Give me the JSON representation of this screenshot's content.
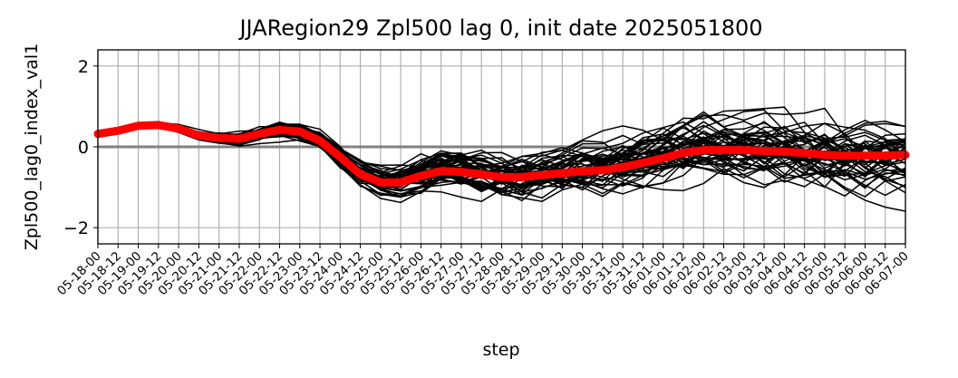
{
  "chart_data": {
    "type": "line",
    "title": "JJARegion29 Zpl500 lag 0, init date 2025051800",
    "xlabel": "step",
    "ylabel": "Zpl500_lag0_index_val1",
    "ylim": [
      -2.4,
      2.4
    ],
    "yticks": [
      -2,
      0,
      2
    ],
    "ytick_labels": [
      "−2",
      "0",
      "2"
    ],
    "grid": true,
    "reference_line": {
      "y": 0,
      "color": "#808080"
    },
    "x": [
      "05-18-00",
      "05-18-12",
      "05-19-00",
      "05-19-12",
      "05-20-00",
      "05-20-12",
      "05-21-00",
      "05-21-12",
      "05-22-00",
      "05-22-12",
      "05-23-00",
      "05-23-12",
      "05-24-00",
      "05-24-12",
      "05-25-00",
      "05-25-12",
      "05-26-00",
      "05-26-12",
      "05-27-00",
      "05-27-12",
      "05-28-00",
      "05-28-12",
      "05-29-00",
      "05-29-12",
      "05-30-00",
      "05-30-12",
      "05-31-00",
      "05-31-12",
      "06-01-00",
      "06-01-12",
      "06-02-00",
      "06-02-12",
      "06-03-00",
      "06-03-12",
      "06-04-00",
      "06-04-12",
      "06-05-00",
      "06-05-12",
      "06-06-00",
      "06-06-12",
      "06-07-00"
    ],
    "ensemble_mean": {
      "color": "#ff0000",
      "values": [
        0.32,
        0.4,
        0.52,
        0.54,
        0.45,
        0.28,
        0.22,
        0.2,
        0.32,
        0.42,
        0.38,
        0.15,
        -0.25,
        -0.68,
        -0.88,
        -0.88,
        -0.72,
        -0.6,
        -0.62,
        -0.68,
        -0.75,
        -0.75,
        -0.7,
        -0.65,
        -0.6,
        -0.58,
        -0.5,
        -0.4,
        -0.28,
        -0.15,
        -0.08,
        -0.08,
        -0.08,
        -0.1,
        -0.12,
        -0.15,
        -0.2,
        -0.22,
        -0.22,
        -0.22,
        -0.2
      ]
    },
    "ensemble_members": {
      "color": "#000000",
      "count": 50,
      "spread": [
        0.02,
        0.03,
        0.04,
        0.05,
        0.08,
        0.12,
        0.16,
        0.2,
        0.22,
        0.24,
        0.26,
        0.3,
        0.34,
        0.38,
        0.42,
        0.46,
        0.5,
        0.54,
        0.58,
        0.62,
        0.66,
        0.7,
        0.72,
        0.74,
        0.76,
        0.78,
        0.8,
        0.82,
        0.84,
        0.86,
        0.88,
        0.9,
        0.92,
        0.94,
        0.96,
        0.98,
        1.0,
        1.0,
        1.0,
        1.0,
        1.0
      ]
    }
  }
}
